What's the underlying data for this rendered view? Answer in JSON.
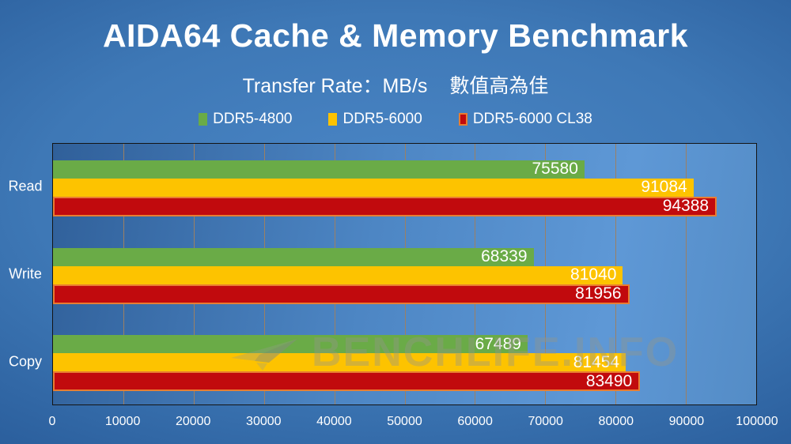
{
  "header": {
    "title": "AIDA64 Cache & Memory Benchmark",
    "subtitle": "Transfer Rate：MB/s",
    "subtitle_note": "數值高為佳"
  },
  "watermark": {
    "label": "BENCHLIFE.INFO",
    "icon": "paper-plane"
  },
  "colors": {
    "background_center": "#4a86c6",
    "background_edge": "#123a68",
    "plot_border": "#141414",
    "gridline": "#9b8064",
    "text": "#ffffff"
  },
  "chart_data": {
    "type": "bar",
    "orientation": "horizontal",
    "title": "AIDA64 Cache & Memory Benchmark",
    "subtitle": "Transfer Rate：MB/s 數值高為佳",
    "categories": [
      "Read",
      "Write",
      "Copy"
    ],
    "series": [
      {
        "name": "DDR5-4800",
        "color": "#6AAB47",
        "values": [
          75580,
          68339,
          67489
        ]
      },
      {
        "name": "DDR5-6000",
        "color": "#FDC300",
        "values": [
          91084,
          81040,
          81454
        ]
      },
      {
        "name": "DDR5-6000 CL38",
        "color": "#C10A0D",
        "border_color": "#E87D32",
        "values": [
          94388,
          81956,
          83490
        ]
      }
    ],
    "xlim": [
      0,
      100000
    ],
    "x_ticks": [
      0,
      10000,
      20000,
      30000,
      40000,
      50000,
      60000,
      70000,
      80000,
      90000,
      100000
    ],
    "grid": "vertical",
    "legend_position": "top",
    "value_labels": "inside-end"
  }
}
